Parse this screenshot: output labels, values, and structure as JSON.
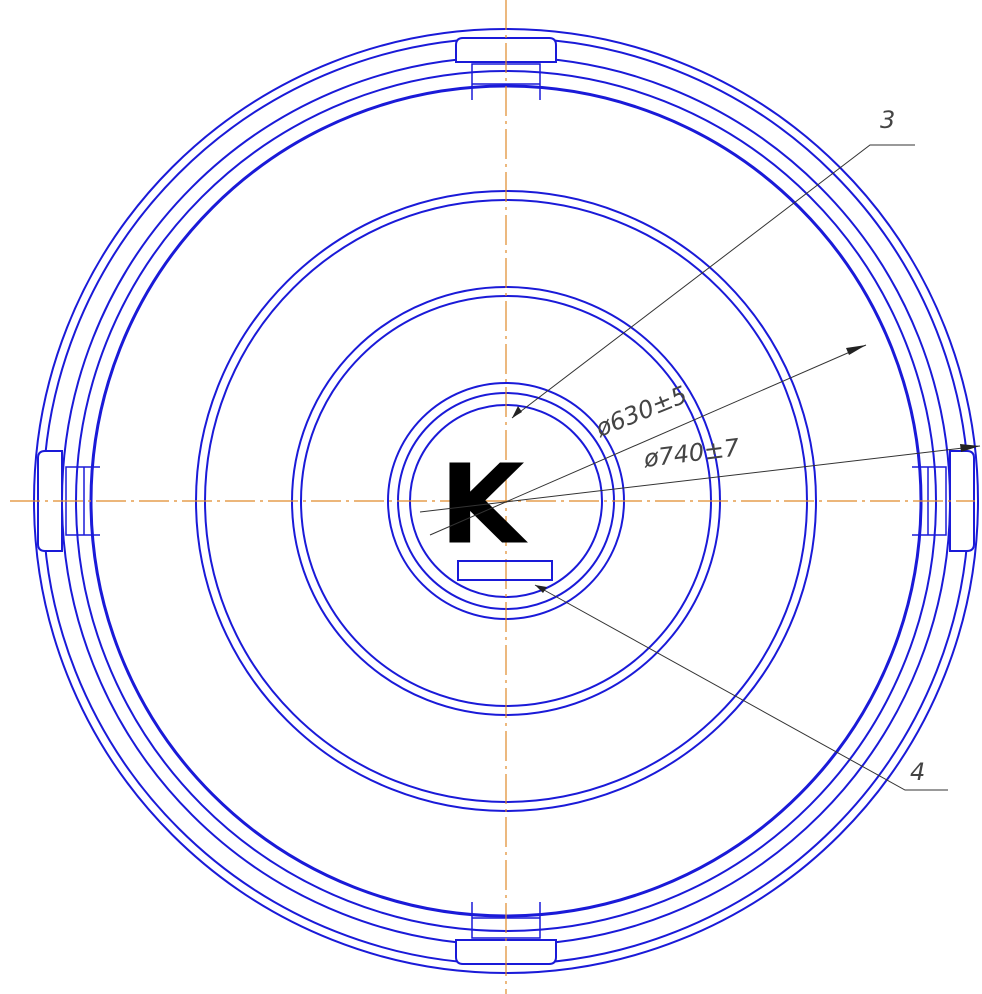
{
  "mark": "K",
  "leaders": [
    {
      "label": "3"
    },
    {
      "label": "4"
    }
  ],
  "dimensions": [
    {
      "label": "ø630±5"
    },
    {
      "label": "ø740±7"
    }
  ]
}
